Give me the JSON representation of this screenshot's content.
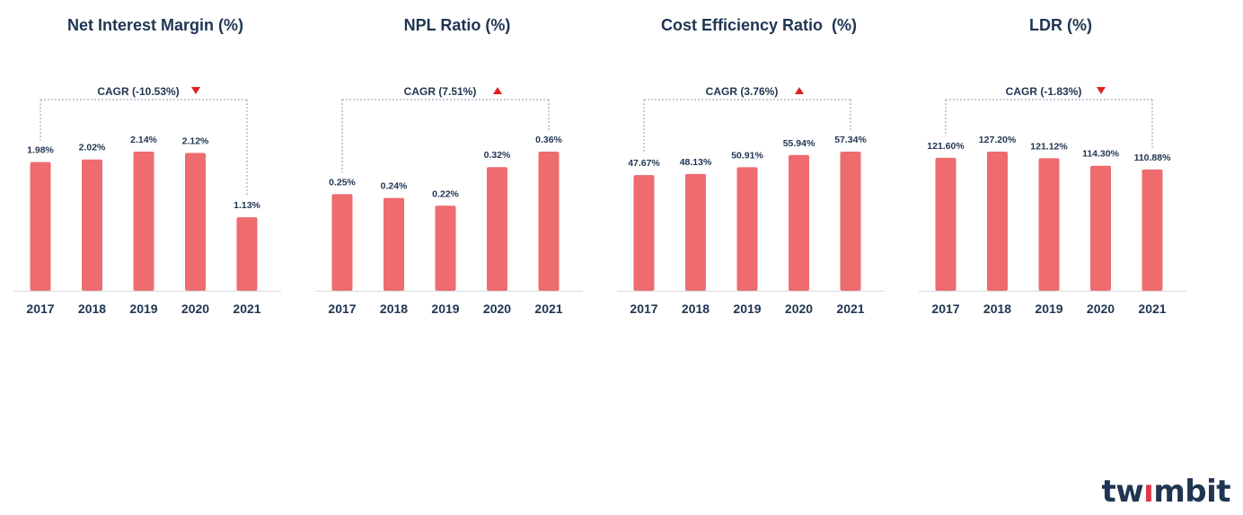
{
  "brand": {
    "name": "twimbit",
    "bar_color": "#ee6b6e",
    "text_color": "#1f3552",
    "up_color": "#e02020",
    "down_color": "#e02020"
  },
  "chart_data": [
    {
      "type": "bar",
      "title": "Net Interest Margin (%)",
      "categories": [
        "2017",
        "2018",
        "2019",
        "2020",
        "2021"
      ],
      "values": [
        1.98,
        2.02,
        2.14,
        2.12,
        1.13
      ],
      "labels": [
        "1.98%",
        "2.02%",
        "2.14%",
        "2.12%",
        "1.13%"
      ],
      "ylim": [
        0,
        2.14
      ],
      "cagr": {
        "text": "CAGR (-10.53%)",
        "direction": "down"
      }
    },
    {
      "type": "bar",
      "title": "NPL Ratio (%)",
      "categories": [
        "2017",
        "2018",
        "2019",
        "2020",
        "2021"
      ],
      "values": [
        0.25,
        0.24,
        0.22,
        0.32,
        0.36
      ],
      "labels": [
        "0.25%",
        "0.24%",
        "0.22%",
        "0.32%",
        "0.36%"
      ],
      "ylim": [
        0,
        0.36
      ],
      "cagr": {
        "text": "CAGR (7.51%)",
        "direction": "up"
      }
    },
    {
      "type": "bar",
      "title": "Cost Efficiency Ratio  (%)",
      "categories": [
        "2017",
        "2018",
        "2019",
        "2020",
        "2021"
      ],
      "values": [
        47.67,
        48.13,
        50.91,
        55.94,
        57.34
      ],
      "labels": [
        "47.67%",
        "48.13%",
        "50.91%",
        "55.94%",
        "57.34%"
      ],
      "ylim": [
        0,
        57.34
      ],
      "cagr": {
        "text": "CAGR (3.76%)",
        "direction": "up"
      }
    },
    {
      "type": "bar",
      "title": "LDR (%)",
      "categories": [
        "2017",
        "2018",
        "2019",
        "2020",
        "2021"
      ],
      "values": [
        121.6,
        127.2,
        121.12,
        114.3,
        110.88
      ],
      "labels": [
        "121.60%",
        "127.20%",
        "121.12%",
        "114.30%",
        "110.88%"
      ],
      "ylim": [
        0,
        127.2
      ],
      "cagr": {
        "text": "CAGR (-1.83%)",
        "direction": "down"
      }
    }
  ]
}
